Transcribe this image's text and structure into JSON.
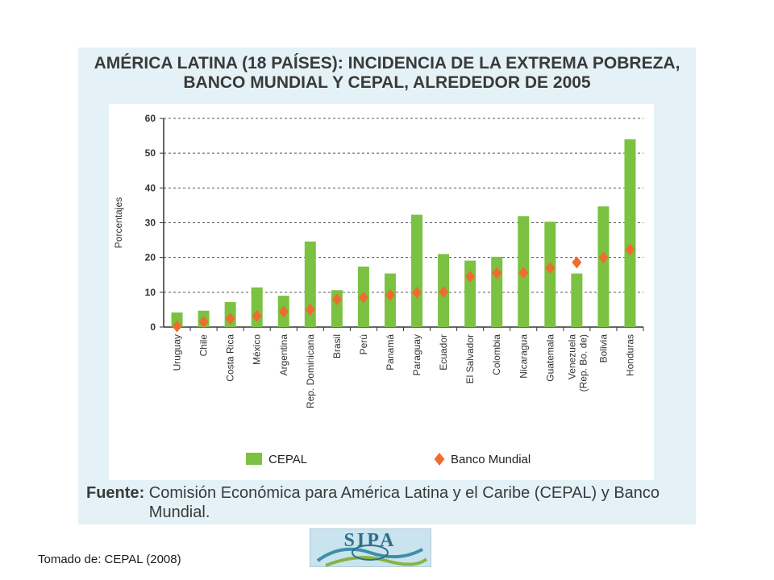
{
  "slide": {
    "credit": "Tomado de: CEPAL (2008)",
    "logo_text": "SIPA"
  },
  "figure": {
    "title_line1": "AMÉRICA LATINA (18 PAÍSES): INCIDENCIA DE LA EXTREMA POBREZA,",
    "title_line2": "BANCO MUNDIAL Y CEPAL, ALREDEDOR DE 2005",
    "source_label": "Fuente",
    "source_text": "Comisión Económica para América Latina y el Caribe (CEPAL) y Banco Mundial."
  },
  "chart_data": {
    "type": "bar",
    "ylabel": "Porcentajes",
    "ylim": [
      0,
      60
    ],
    "yticks": [
      0,
      10,
      20,
      30,
      40,
      50,
      60
    ],
    "grid": true,
    "legend_placement": "bottom",
    "categories": [
      "Uruguay",
      "Chile",
      "Costa Rica",
      "México",
      "Argentina",
      "Rep. Dominicana",
      "Brasil",
      "Perú",
      "Panamá",
      "Paraguay",
      "Ecuador",
      "El Salvador",
      "Colombia",
      "Nicaragua",
      "Guatemala",
      "Venezuela (Rep. Bo. de)",
      "Bolivia",
      "Honduras"
    ],
    "series": [
      {
        "name": "CEPAL",
        "kind": "bar",
        "color": "#7cc242",
        "values": [
          4.2,
          4.7,
          7.2,
          11.4,
          9.0,
          24.6,
          10.6,
          17.4,
          15.4,
          32.3,
          21.0,
          19.1,
          20.2,
          31.9,
          30.3,
          15.4,
          34.7,
          54.0
        ]
      },
      {
        "name": "Banco Mundial",
        "kind": "marker",
        "color": "#ef6c2f",
        "values": [
          0.2,
          1.5,
          2.4,
          3.2,
          4.4,
          5.0,
          8.0,
          8.5,
          9.2,
          9.9,
          10.1,
          14.5,
          15.5,
          15.6,
          17.0,
          18.6,
          20.0,
          22.3
        ]
      }
    ]
  }
}
